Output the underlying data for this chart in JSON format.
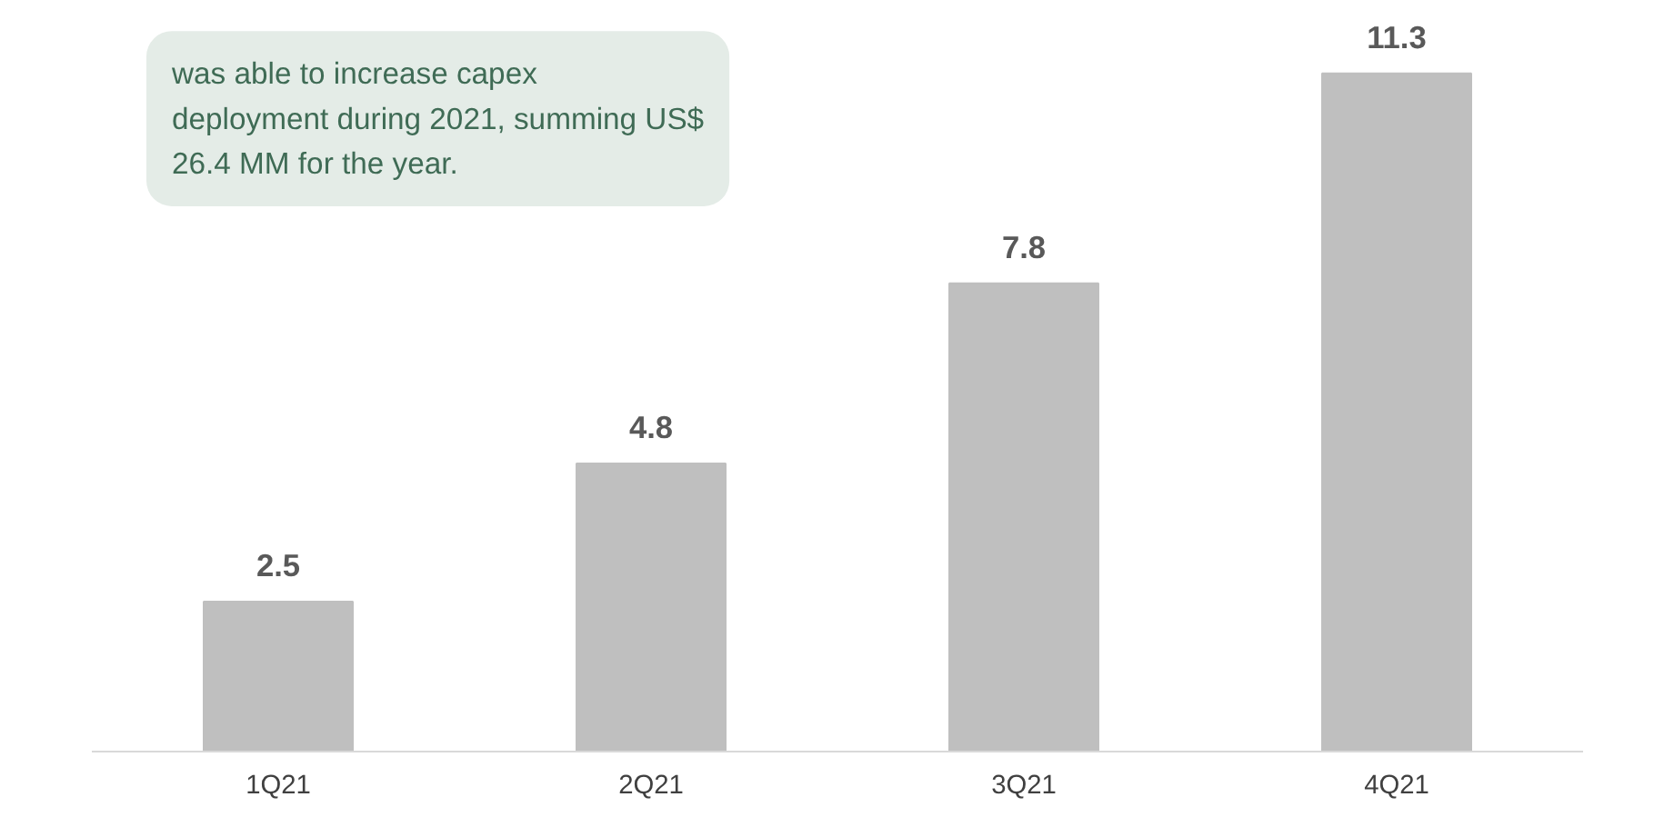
{
  "chart_data": {
    "type": "bar",
    "categories": [
      "1Q21",
      "2Q21",
      "3Q21",
      "4Q21"
    ],
    "values": [
      2.5,
      4.8,
      7.8,
      11.3
    ],
    "color": "#bfbfbf",
    "data_labels": true,
    "grid": false,
    "annotations": [
      "was able to increase capex deployment during 2021, summing US$ 26.4 MM for the year."
    ]
  }
}
